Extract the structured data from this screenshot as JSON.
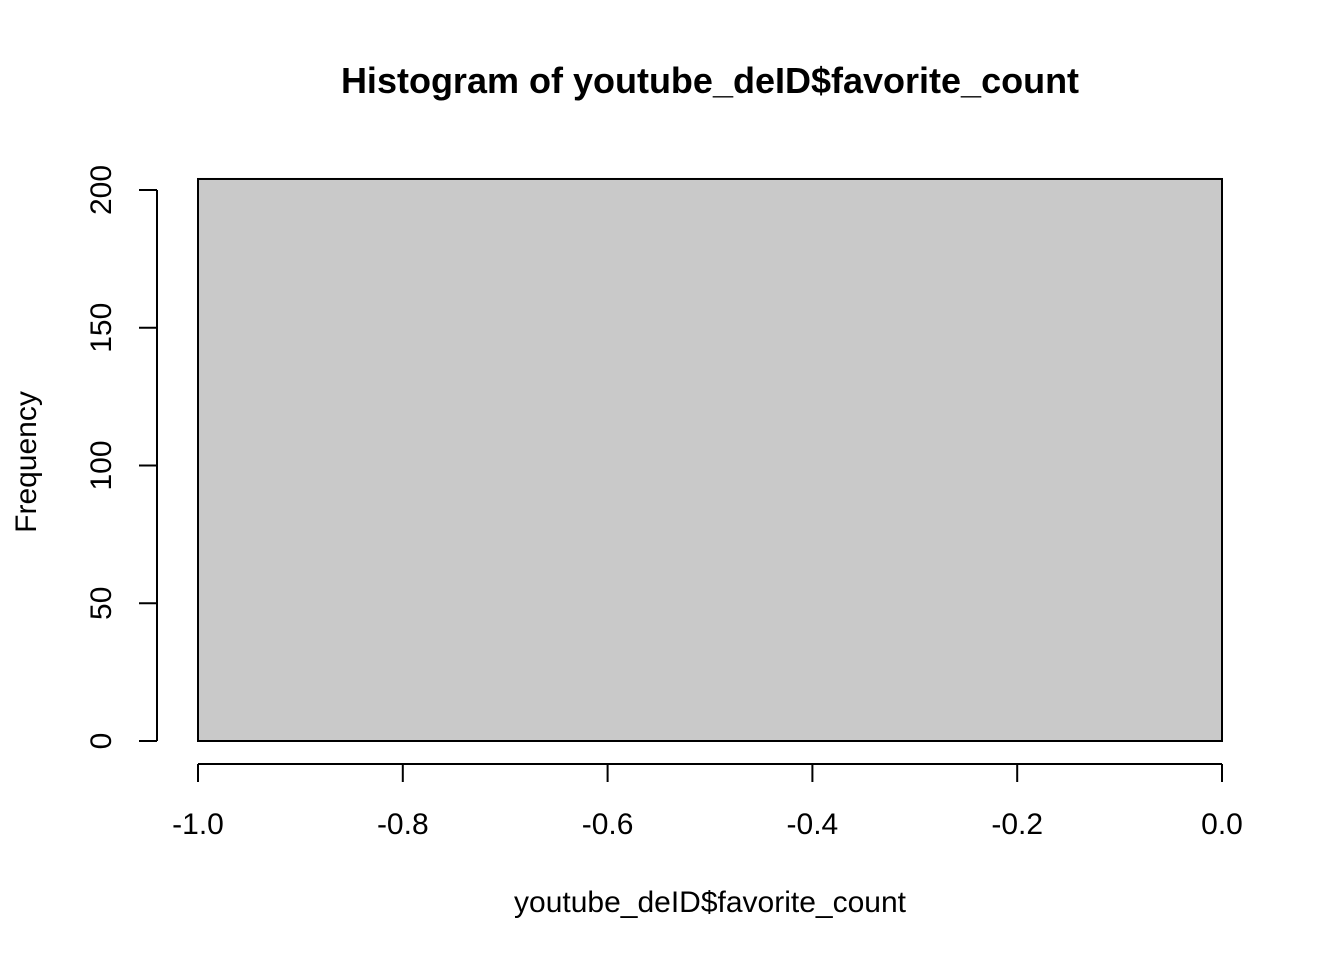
{
  "chart_data": {
    "type": "bar",
    "title": "Histogram of youtube_deID$favorite_count",
    "xlabel": "youtube_deID$favorite_count",
    "ylabel": "Frequency",
    "xlim": [
      -1.0,
      0.0
    ],
    "ylim": [
      0,
      200
    ],
    "x_ticks": [
      "-1.0",
      "-0.8",
      "-0.6",
      "-0.4",
      "-0.2",
      "0.0"
    ],
    "y_ticks": [
      "0",
      "50",
      "100",
      "150",
      "200"
    ],
    "bins": [
      {
        "start": -1.0,
        "end": 0.0,
        "count": 204
      }
    ],
    "bar_fill": "#c9c9c9",
    "bar_stroke": "#000000",
    "grid": false,
    "legend": "none"
  }
}
